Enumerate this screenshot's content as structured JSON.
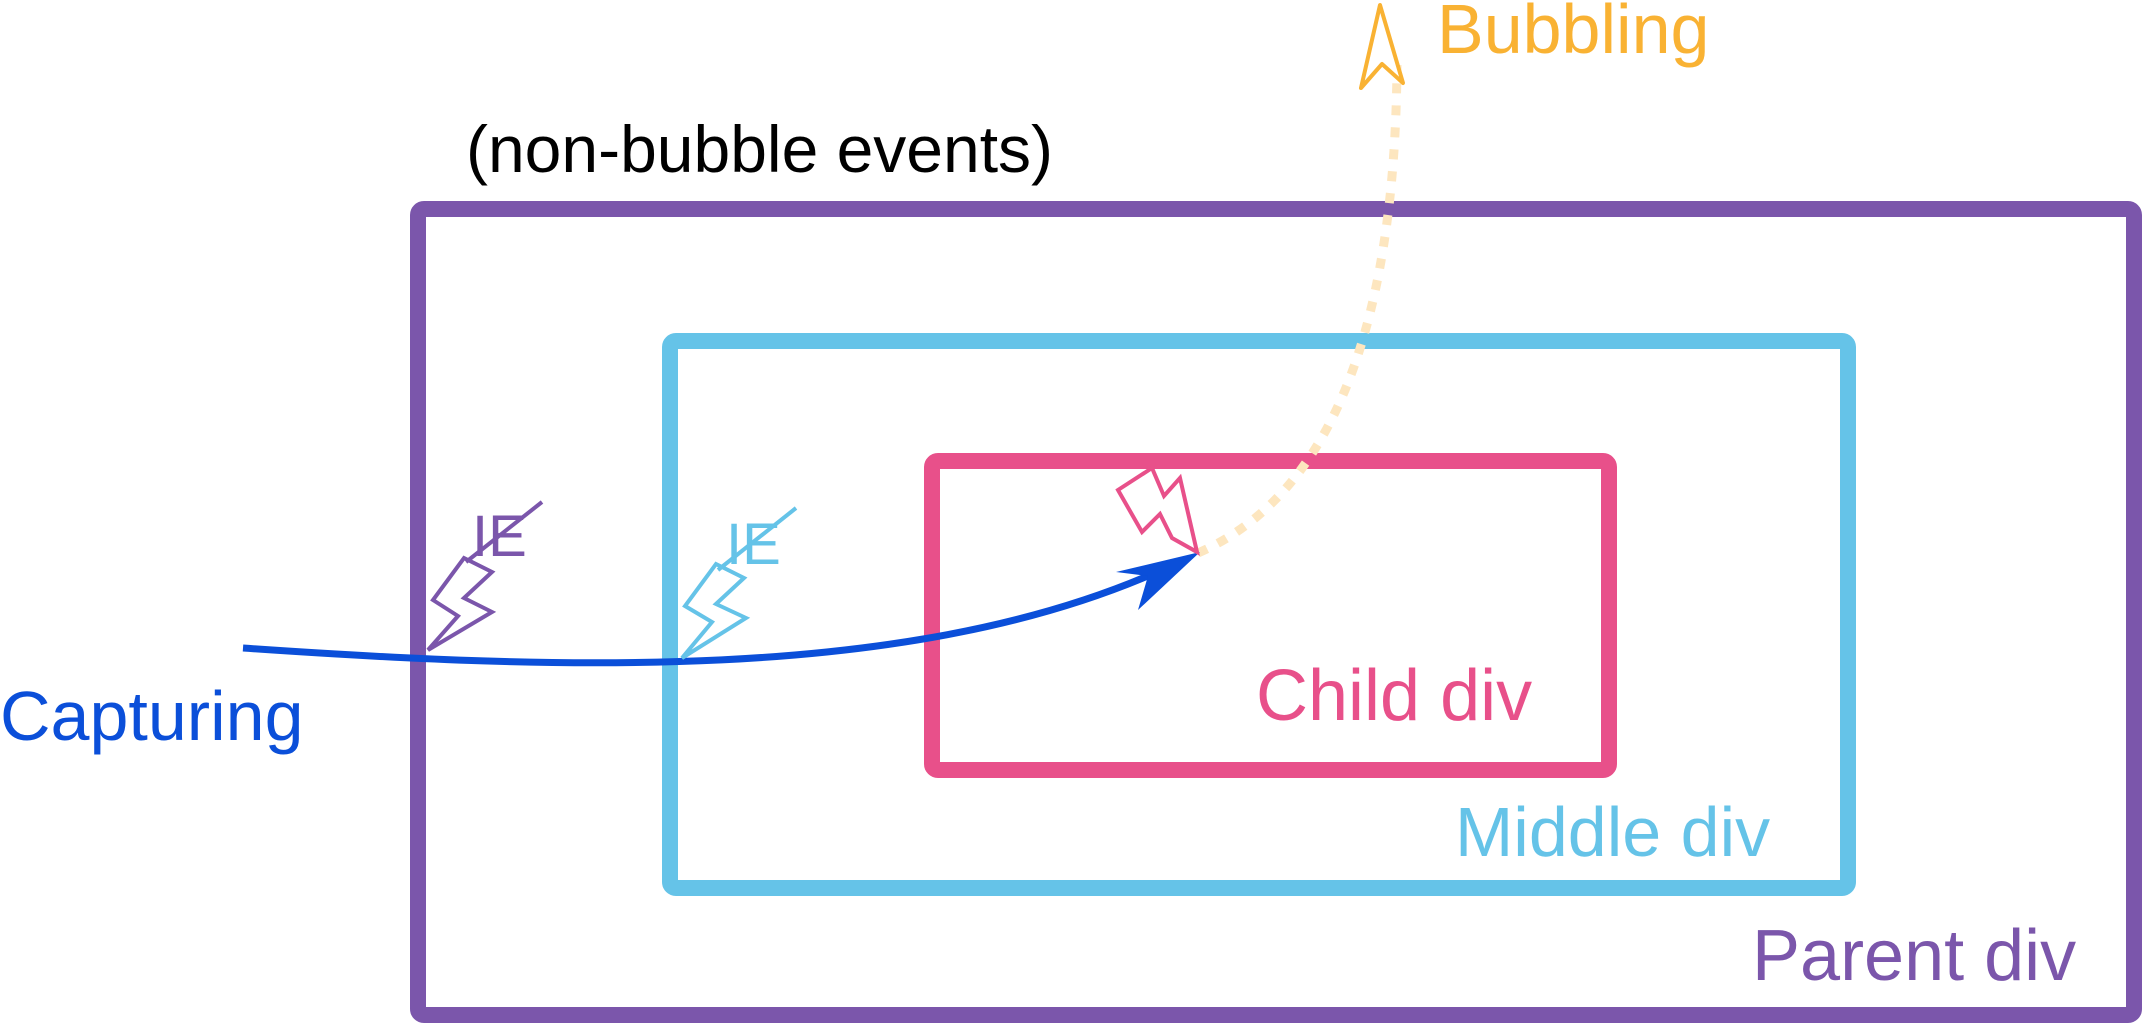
{
  "labels": {
    "bubbling": "Bubbling",
    "non_bubble": "(non-bubble events)",
    "capturing": "Capturing",
    "child": "Child div",
    "middle": "Middle div",
    "parent": "Parent div",
    "ie_parent": "IE",
    "ie_middle": "IE"
  },
  "colors": {
    "parent": "#7b56ab",
    "middle": "#65c3e8",
    "child": "#e8508a",
    "capturing": "#0b4fd9",
    "bubbling": "#f9b233",
    "bubbling_path": "#fde6bf",
    "text": "#000000"
  },
  "icons": {
    "event_marker": "lightning-bolt-icon",
    "ie_marker": "strikethrough-ie-icon"
  }
}
